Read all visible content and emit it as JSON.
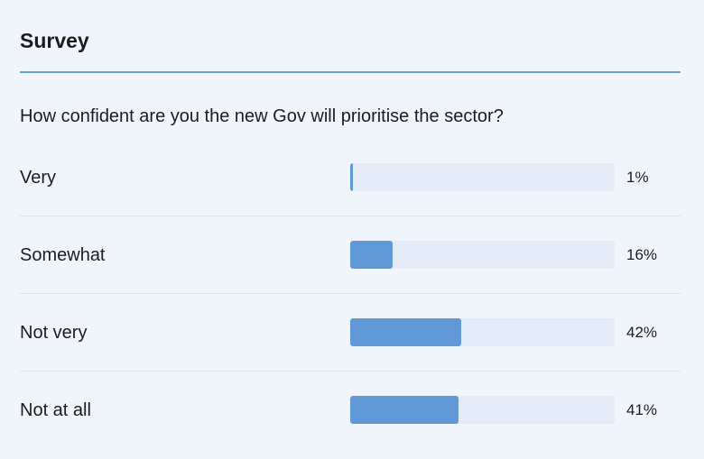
{
  "survey": {
    "title": "Survey",
    "question": "How confident are you the new Gov will prioritise the sector?",
    "accent_color": "#6198d8",
    "options": [
      {
        "label": "Very",
        "percent_label": "1%",
        "percent": 1
      },
      {
        "label": "Somewhat",
        "percent_label": "16%",
        "percent": 16
      },
      {
        "label": "Not very",
        "percent_label": "42%",
        "percent": 42
      },
      {
        "label": "Not at all",
        "percent_label": "41%",
        "percent": 41
      }
    ]
  }
}
